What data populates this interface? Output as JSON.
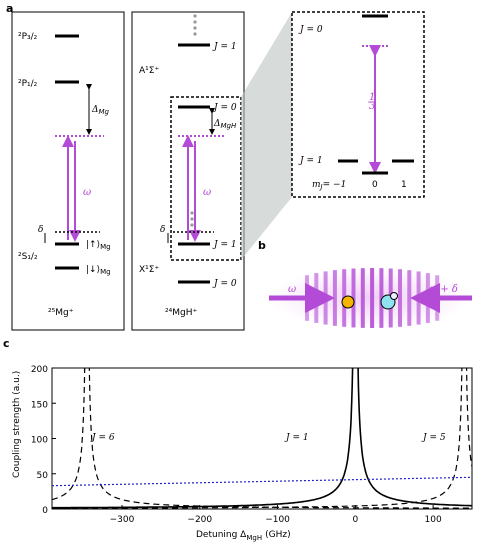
{
  "panel_a": {
    "label": "a",
    "mg": {
      "title": "²⁵Mg⁺",
      "levels": {
        "p32": "²P₃/₂",
        "p12": "²P₁/₂",
        "s12": "²S₁/₂",
        "up": "|↑⟩",
        "up_sub": "Mg",
        "down": "|↓⟩",
        "down_sub": "Mg"
      },
      "delta_mg": "Δ",
      "delta_mg_sub": "Mg",
      "omega": "ω",
      "delta": "δ"
    },
    "mgh": {
      "title": "²⁴MgH⁺",
      "a_state": "A¹Σ⁺",
      "x_state": "X¹Σ⁺",
      "j1_top": "J = 1",
      "j0": "J = 0",
      "j1": "J = 1",
      "j0_bottom": "J = 0",
      "delta_mgh": "Δ",
      "delta_mgh_sub": "MgH",
      "omega": "ω",
      "delta": "δ"
    },
    "inset": {
      "j0": "J = 0",
      "j1": "J = 1",
      "mj_label": "m",
      "mj_sub": "J",
      "mj_eq": "= −1",
      "mj0": "0",
      "mj1": "1",
      "fraction_num": "1",
      "fraction_den": "3"
    }
  },
  "panel_b": {
    "label": "b",
    "left_beam": "ω",
    "right_beam": "ω + δ"
  },
  "panel_c": {
    "label": "c",
    "ylabel": "Coupling strength (a.u.)",
    "xlabel": "Detuning Δ",
    "xlabel_sub": "MgH",
    "xlabel_unit": "(GHz)",
    "curve_labels": [
      "J = 6",
      "J = 1",
      "J = 5"
    ]
  },
  "chart_data": {
    "type": "line",
    "xlim": [
      -390,
      150
    ],
    "ylim": [
      0,
      200
    ],
    "xticks": [
      -300,
      -200,
      -100,
      0,
      100
    ],
    "xtick_labels": [
      "−300",
      "−200",
      "−100",
      "0",
      "100"
    ],
    "yticks": [
      0,
      50,
      100,
      150,
      200
    ],
    "ytick_labels": [
      "0",
      "50",
      "100",
      "150",
      "200"
    ],
    "grid": false,
    "series": [
      {
        "name": "J = 1",
        "style": "solid",
        "color": "#000000",
        "resonance": 0,
        "amplitude": 700
      },
      {
        "name": "J = 6",
        "style": "dashed",
        "color": "#000000",
        "resonance": -345,
        "amplitude": 600
      },
      {
        "name": "J = 5",
        "style": "dashed",
        "color": "#000000",
        "resonance": 140,
        "amplitude": 600
      },
      {
        "style": "dotted",
        "color": "#2020c8",
        "x": [
          -390,
          150
        ],
        "y": [
          33,
          45
        ]
      }
    ]
  }
}
